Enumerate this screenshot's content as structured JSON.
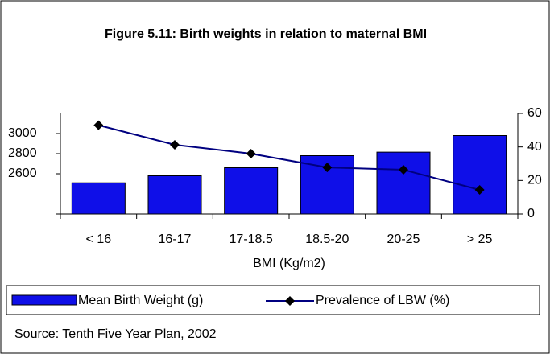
{
  "chart_data": {
    "type": "bar-line",
    "title": "Figure 5.11: Birth weights in relation to maternal BMI",
    "x_label": "BMI (Kg/m2)",
    "categories": [
      "< 16",
      "16-17",
      "17-18.5",
      "18.5-20",
      "20-25",
      "> 25"
    ],
    "series": [
      {
        "name": "Mean Birth Weight (g)",
        "type": "bar",
        "color": "#0f0fe8",
        "values": [
          2510,
          2580,
          2660,
          2780,
          2815,
          2980
        ]
      },
      {
        "name": "Prevalence of LBW (%)",
        "type": "line",
        "color": "#000080",
        "axis": "y2",
        "values": [
          53,
          41.3,
          36,
          27.8,
          26.4,
          14.4
        ]
      }
    ],
    "ylim": [
      2200,
      3200
    ],
    "yticks": [
      2600,
      2800,
      3000
    ],
    "y2lim": [
      0,
      60
    ],
    "y2ticks": [
      0,
      20,
      40,
      60
    ],
    "source": "Source: Tenth Five Year Plan, 2002"
  }
}
